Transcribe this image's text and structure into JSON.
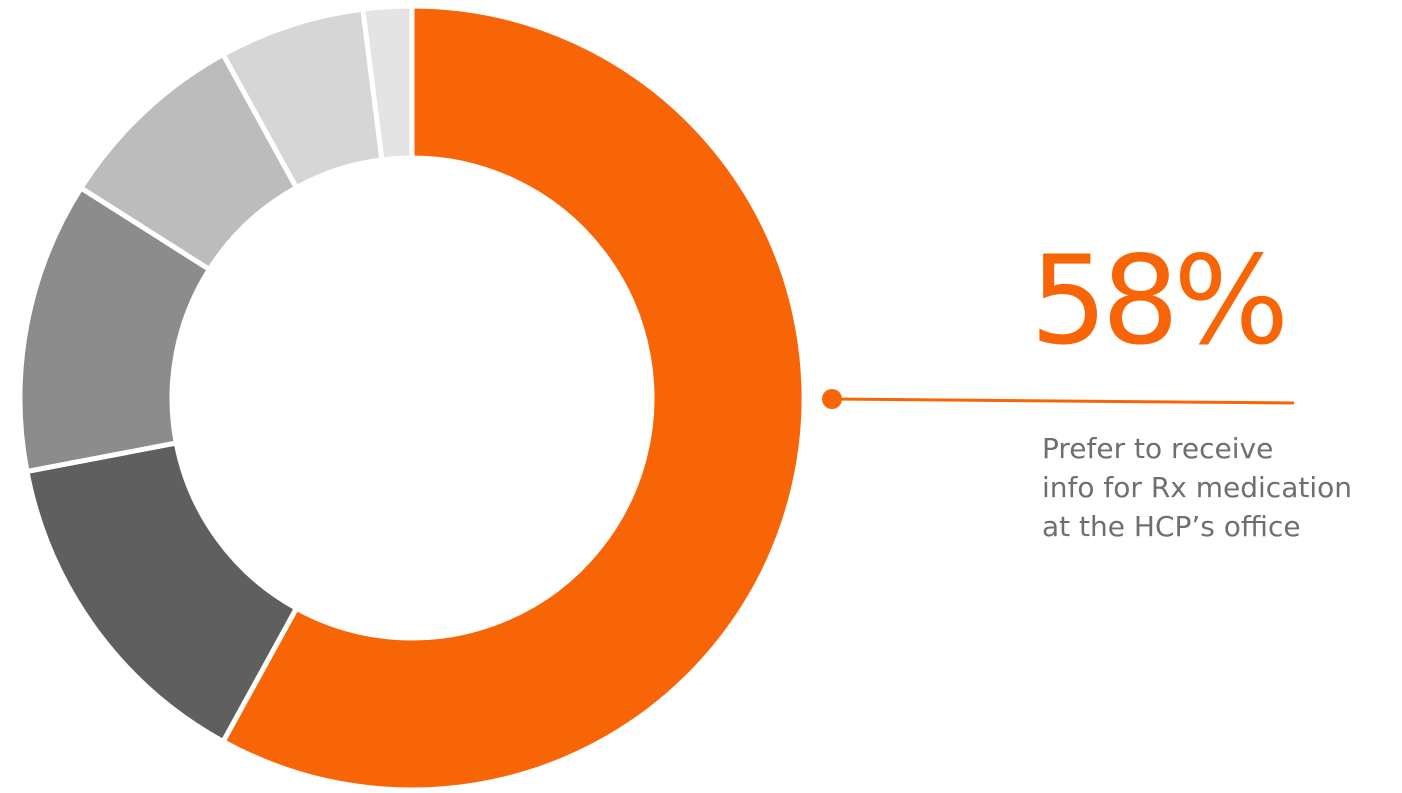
{
  "chart_data": {
    "type": "pie",
    "donut": true,
    "title": "",
    "slices": [
      {
        "value": 58,
        "color": "#f76507"
      },
      {
        "value": 14,
        "color": "#5f5f5f"
      },
      {
        "value": 12,
        "color": "#8c8c8c"
      },
      {
        "value": 8,
        "color": "#bcbcbc"
      },
      {
        "value": 6,
        "color": "#d6d6d6"
      },
      {
        "value": 2,
        "color": "#e4e4e4"
      }
    ],
    "start": "12 o'clock",
    "direction": "clockwise",
    "legend": "none"
  },
  "callout": {
    "value": "58%",
    "caption_lines": [
      "Prefer to receive",
      "info for Rx medication",
      "at the HCP’s office"
    ],
    "value_color": "#f76507",
    "caption_color": "#6f6f6f"
  }
}
